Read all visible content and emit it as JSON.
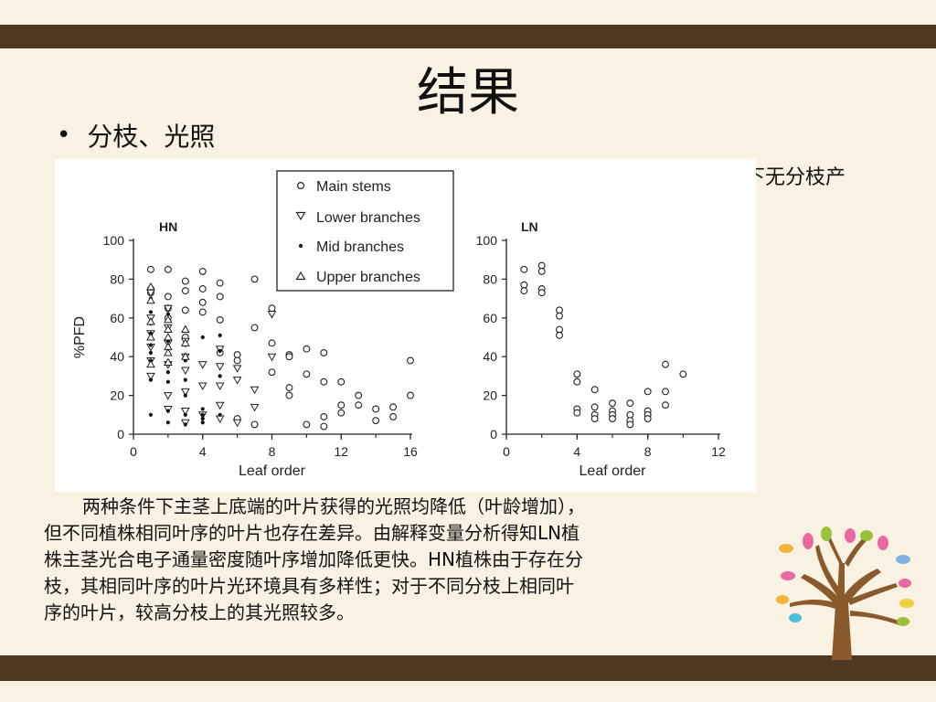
{
  "slide": {
    "title": "结果",
    "bullet": "分枝、光照",
    "partial_text": "下无分枝产",
    "caption": {
      "line1": "两种条件下主茎上底端的叶片获得的光照均降低（叶龄增加），",
      "line2": "但不同植株相同叶序的叶片也存在差异。由解释变量分析得知LN植",
      "line3": "株主茎光合电子通量密度随叶序增加降低更快。HN植株由于存在分",
      "line4": "枝，其相同叶序的叶片光环境具有多样性；对于不同分枝上相同叶",
      "line5": "序的叶片，较高分枝上的其光照较多。"
    },
    "colors": {
      "band": "#4e3822",
      "background": "#f9f1e1"
    }
  },
  "legend": {
    "main": "Main stems",
    "lower": "Lower branches",
    "mid": "Mid branches",
    "upper": "Upper branches"
  },
  "chart_data": [
    {
      "type": "scatter",
      "title": "HN",
      "xlabel": "Leaf order",
      "ylabel": "%PFD",
      "xlim": [
        0,
        16
      ],
      "ylim": [
        0,
        100
      ],
      "xticks": [
        "0",
        "4",
        "8",
        "12",
        "16"
      ],
      "yticks": [
        "0",
        "20",
        "40",
        "60",
        "80",
        "100"
      ],
      "legend_position": "top-center",
      "series": [
        {
          "name": "Main stems",
          "marker": "circle",
          "x": [
            1,
            1,
            1,
            2,
            2,
            2,
            2,
            3,
            3,
            3,
            3,
            4,
            4,
            4,
            4,
            5,
            5,
            5,
            5,
            6,
            6,
            6,
            7,
            7,
            7,
            8,
            8,
            8,
            9,
            9,
            9,
            9,
            10,
            10,
            10,
            11,
            11,
            11,
            11,
            12,
            12,
            12,
            13,
            13,
            14,
            14,
            15,
            15,
            16,
            16
          ],
          "y": [
            85,
            75,
            73,
            85,
            71,
            65,
            60,
            79,
            74,
            64,
            50,
            84,
            75,
            68,
            63,
            78,
            71,
            59,
            42,
            41,
            38,
            8,
            80,
            55,
            5,
            65,
            47,
            32,
            41,
            40,
            24,
            20,
            44,
            31,
            5,
            42,
            27,
            9,
            4,
            27,
            15,
            11,
            20,
            15,
            13,
            7,
            14,
            9,
            38,
            20
          ]
        },
        {
          "name": "Lower branches",
          "marker": "triangle-down",
          "x": [
            1,
            1,
            1,
            1,
            1,
            1,
            2,
            2,
            2,
            2,
            2,
            2,
            3,
            3,
            3,
            3,
            3,
            3,
            4,
            4,
            4,
            5,
            5,
            5,
            5,
            5,
            6,
            6,
            6,
            7,
            7,
            8,
            8
          ],
          "y": [
            73,
            60,
            52,
            45,
            38,
            30,
            65,
            55,
            47,
            36,
            20,
            13,
            48,
            40,
            33,
            22,
            12,
            6,
            36,
            25,
            10,
            44,
            35,
            25,
            15,
            8,
            34,
            28,
            6,
            23,
            14,
            62,
            40
          ]
        },
        {
          "name": "Mid branches",
          "marker": "dot",
          "x": [
            1,
            1,
            1,
            1,
            1,
            1,
            1,
            1,
            1,
            2,
            2,
            2,
            2,
            2,
            2,
            2,
            2,
            3,
            3,
            3,
            3,
            3,
            3,
            3,
            4,
            4,
            4,
            4,
            4,
            5,
            5,
            5,
            5
          ],
          "y": [
            70,
            63,
            57,
            52,
            46,
            42,
            38,
            28,
            10,
            62,
            54,
            48,
            44,
            32,
            27,
            12,
            6,
            54,
            46,
            38,
            28,
            20,
            10,
            5,
            13,
            10,
            8,
            6,
            50,
            51,
            43,
            30,
            10
          ]
        },
        {
          "name": "Upper branches",
          "marker": "triangle-up",
          "x": [
            1,
            1,
            1,
            1,
            1,
            2,
            2,
            2,
            2,
            2,
            2,
            3,
            3,
            3
          ],
          "y": [
            76,
            69,
            58,
            50,
            36,
            59,
            54,
            50,
            45,
            42,
            37,
            54,
            47,
            40
          ]
        }
      ]
    },
    {
      "type": "scatter",
      "title": "LN",
      "xlabel": "Leaf order",
      "ylabel": "",
      "xlim": [
        0,
        12
      ],
      "ylim": [
        0,
        100
      ],
      "xticks": [
        "0",
        "4",
        "8",
        "12"
      ],
      "yticks": [
        "0",
        "20",
        "40",
        "60",
        "80",
        "100"
      ],
      "series": [
        {
          "name": "Main stems",
          "marker": "circle",
          "x": [
            1,
            1,
            1,
            2,
            2,
            2,
            2,
            3,
            3,
            3,
            3,
            4,
            4,
            4,
            4,
            5,
            5,
            5,
            5,
            6,
            6,
            6,
            6,
            7,
            7,
            7,
            7,
            8,
            8,
            8,
            8,
            9,
            9,
            9,
            10
          ],
          "y": [
            85,
            77,
            74,
            87,
            84,
            75,
            73,
            64,
            61,
            54,
            51,
            31,
            27,
            13,
            11,
            23,
            14,
            10,
            8,
            16,
            12,
            10,
            8,
            16,
            10,
            7,
            5,
            22,
            12,
            10,
            8,
            36,
            22,
            15,
            31
          ]
        }
      ]
    }
  ]
}
